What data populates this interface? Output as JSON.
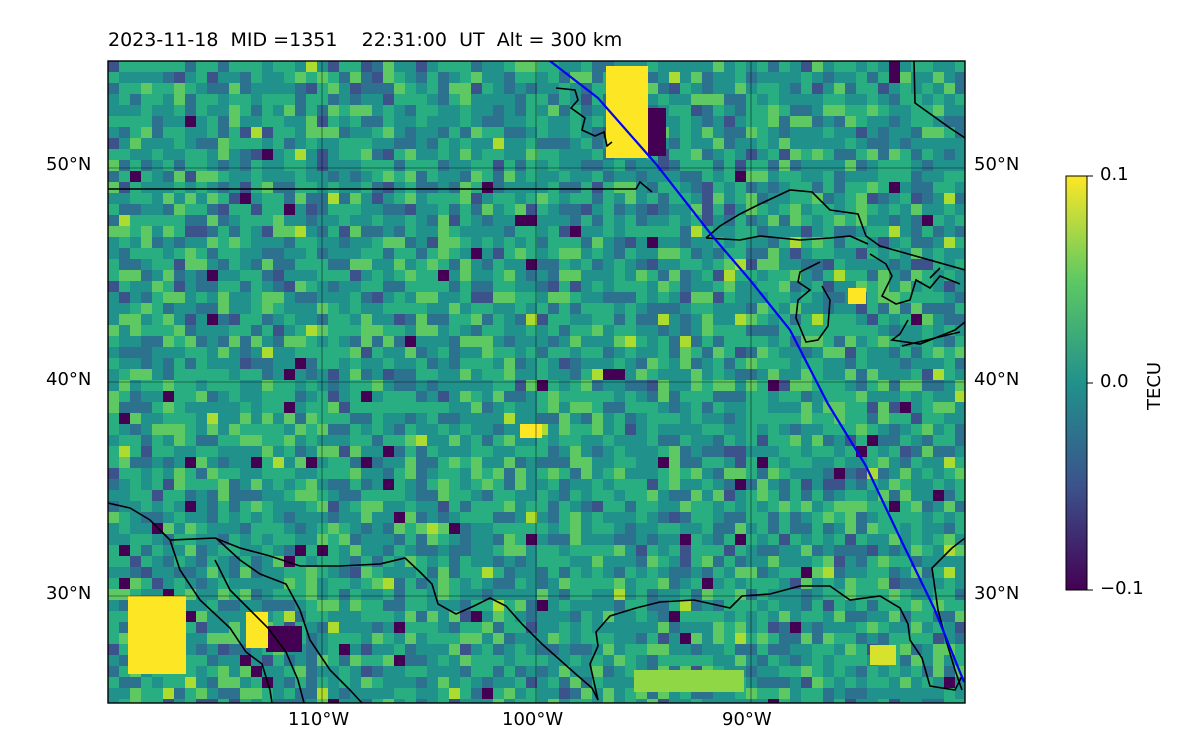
{
  "title": {
    "date": "2023-11-18",
    "mid": "MID =1351",
    "time": "22:31:00",
    "time_unit": "UT",
    "alt": "Alt = 300 km"
  },
  "map": {
    "lat_labels": [
      "50°N",
      "40°N",
      "30°N"
    ],
    "lon_labels": [
      "110°W",
      "100°W",
      "90°W"
    ],
    "extent": {
      "lon": [
        -120,
        -80
      ],
      "lat": [
        25,
        55
      ]
    },
    "gridlines": true,
    "satellite_track_color": "#0000ff",
    "coastline_color": "#000000"
  },
  "colorbar": {
    "label": "TECU",
    "ticks": [
      "0.1",
      "0.0",
      "−0.1"
    ],
    "range": [
      -0.1,
      0.1
    ],
    "colormap": "viridis",
    "colors": [
      "#440154",
      "#3b528b",
      "#21918c",
      "#5ec962",
      "#fde725"
    ]
  }
}
